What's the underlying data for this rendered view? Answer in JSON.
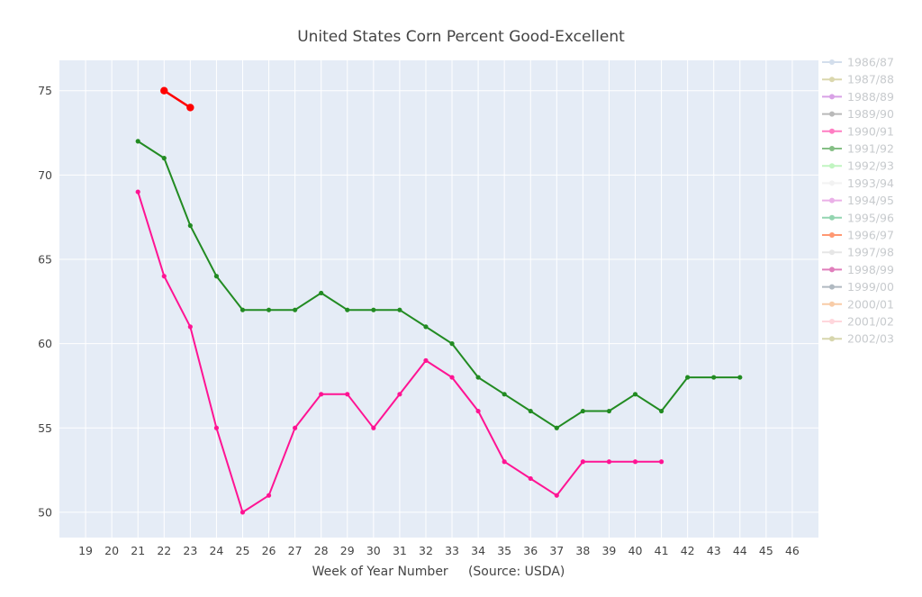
{
  "chart_data": {
    "type": "line",
    "title": "United States Corn Percent Good-Excellent",
    "xlabel": "Week of Year Number     (Source: USDA)",
    "ylabel": "",
    "xlim": [
      18,
      47
    ],
    "ylim": [
      48.5,
      76.8
    ],
    "xticks": [
      19,
      20,
      21,
      22,
      23,
      24,
      25,
      26,
      27,
      28,
      29,
      30,
      31,
      32,
      33,
      34,
      35,
      36,
      37,
      38,
      39,
      40,
      41,
      42,
      43,
      44,
      45,
      46
    ],
    "yticks": [
      50,
      55,
      60,
      65,
      70,
      75
    ],
    "grid": true,
    "legend_position": "right",
    "series": [
      {
        "name": "1986/87",
        "color": "#b0c4de",
        "x": [],
        "y": []
      },
      {
        "name": "1987/88",
        "color": "#bdb76b",
        "x": [],
        "y": []
      },
      {
        "name": "1988/89",
        "color": "#ba55d3",
        "x": [],
        "y": []
      },
      {
        "name": "1989/90",
        "color": "#808080",
        "x": [],
        "y": []
      },
      {
        "name": "1990/91",
        "color": "#ff1493",
        "x": [
          21,
          22,
          23,
          24,
          25,
          26,
          27,
          28,
          29,
          30,
          31,
          32,
          33,
          34,
          35,
          36,
          37,
          38,
          39,
          40,
          41
        ],
        "y": [
          69,
          64,
          61,
          55,
          50,
          51,
          55,
          57,
          57,
          55,
          57,
          59,
          58,
          56,
          53,
          52,
          51,
          53,
          53,
          53,
          53
        ]
      },
      {
        "name": "1991/92",
        "color": "#228b22",
        "x": [
          21,
          22,
          23,
          24,
          25,
          26,
          27,
          28,
          29,
          30,
          31,
          32,
          33,
          34,
          35,
          36,
          37,
          38,
          39,
          40,
          41,
          42,
          43,
          44
        ],
        "y": [
          72,
          71,
          67,
          64,
          62,
          62,
          62,
          63,
          62,
          62,
          62,
          61,
          60,
          58,
          57,
          56,
          55,
          56,
          56,
          57,
          56,
          58,
          58,
          58
        ]
      },
      {
        "name": "1992/93",
        "color": "#90ee90",
        "x": [],
        "y": []
      },
      {
        "name": "1993/94",
        "color": "#e8e8e8",
        "x": [],
        "y": []
      },
      {
        "name": "1994/95",
        "color": "#da70d6",
        "x": [],
        "y": []
      },
      {
        "name": "1995/96",
        "color": "#3cb371",
        "x": [],
        "y": []
      },
      {
        "name": "1996/97",
        "color": "#ff4500",
        "x": [],
        "y": []
      },
      {
        "name": "1997/98",
        "color": "#d3d3d3",
        "x": [],
        "y": []
      },
      {
        "name": "1998/99",
        "color": "#c71585",
        "x": [],
        "y": []
      },
      {
        "name": "1999/00",
        "color": "#708090",
        "x": [],
        "y": []
      },
      {
        "name": "2000/01",
        "color": "#f4a460",
        "x": [],
        "y": []
      },
      {
        "name": "2001/02",
        "color": "#ffb6c1",
        "x": [],
        "y": []
      },
      {
        "name": "2002/03",
        "color": "#b8b56b",
        "x": [],
        "y": []
      }
    ],
    "highlight_series": {
      "color": "#ff0000",
      "x": [
        22,
        23
      ],
      "y": [
        75,
        74
      ]
    }
  }
}
